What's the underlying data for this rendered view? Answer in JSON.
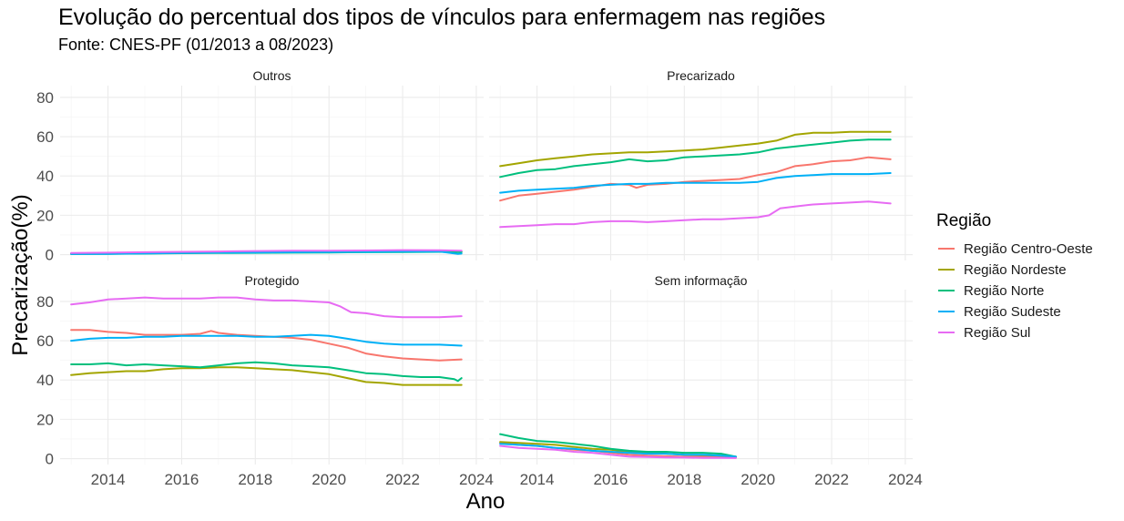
{
  "chart_data": {
    "type": "line",
    "title": "Evolução do percentual dos tipos de vínculos para enfermagem nas regiões",
    "subtitle": "Fonte: CNES-PF (01/2013 a 08/2023)",
    "xlabel": "Ano",
    "ylabel": "Precarização(%)",
    "xlim": [
      2012.7,
      2024.2
    ],
    "ylim": [
      -3,
      86
    ],
    "x_ticks": [
      2014,
      2016,
      2018,
      2020,
      2022,
      2024
    ],
    "y_ticks": [
      0,
      20,
      40,
      60,
      80
    ],
    "grid": true,
    "legend": {
      "title": "Região",
      "position": "right",
      "entries": [
        "Região Centro-Oeste",
        "Região Nordeste",
        "Região Norte",
        "Região Sudeste",
        "Região Sul"
      ]
    },
    "colors": {
      "Região Centro-Oeste": "#F8766D",
      "Região Nordeste": "#A3A500",
      "Região Norte": "#00BF7D",
      "Região Sudeste": "#00B0F6",
      "Região Sul": "#E76BF3"
    },
    "panels": [
      {
        "name": "Outros",
        "series": [
          {
            "name": "Região Centro-Oeste",
            "x": [
              2013,
              2014,
              2015,
              2016,
              2017,
              2018,
              2019,
              2020,
              2021,
              2022,
              2023,
              2023.6
            ],
            "values": [
              0.5,
              0.6,
              0.8,
              1.0,
              1.2,
              1.3,
              1.4,
              1.5,
              1.6,
              1.7,
              1.8,
              1.7
            ]
          },
          {
            "name": "Região Nordeste",
            "x": [
              2013,
              2014,
              2015,
              2016,
              2017,
              2018,
              2019,
              2020,
              2021,
              2022,
              2023,
              2023.6
            ],
            "values": [
              0.4,
              0.5,
              0.7,
              0.9,
              1.0,
              1.1,
              1.2,
              1.3,
              1.4,
              1.5,
              1.6,
              1.5
            ]
          },
          {
            "name": "Região Norte",
            "x": [
              2013,
              2014,
              2015,
              2016,
              2017,
              2018,
              2019,
              2020,
              2021,
              2022,
              2023,
              2023.6
            ],
            "values": [
              0.3,
              0.4,
              0.5,
              0.7,
              0.8,
              0.9,
              1.0,
              1.1,
              1.2,
              1.3,
              1.4,
              1.3
            ]
          },
          {
            "name": "Região Sudeste",
            "x": [
              2013,
              2014,
              2015,
              2016,
              2017,
              2018,
              2019,
              2020,
              2021,
              2022,
              2023,
              2023.5,
              2023.6
            ],
            "values": [
              0.3,
              0.4,
              0.6,
              0.8,
              1.0,
              1.1,
              1.2,
              1.3,
              1.4,
              1.5,
              1.6,
              0.4,
              0.5
            ]
          },
          {
            "name": "Região Sul",
            "x": [
              2013,
              2014,
              2015,
              2016,
              2017,
              2018,
              2019,
              2020,
              2021,
              2022,
              2023,
              2023.6
            ],
            "values": [
              0.8,
              1.0,
              1.2,
              1.4,
              1.6,
              1.8,
              2.0,
              2.0,
              2.1,
              2.3,
              2.2,
              2.0
            ]
          }
        ]
      },
      {
        "name": "Precarizado",
        "series": [
          {
            "name": "Região Centro-Oeste",
            "x": [
              2013,
              2013.5,
              2014,
              2014.5,
              2015,
              2015.5,
              2016,
              2016.5,
              2016.7,
              2017,
              2017.5,
              2018,
              2018.5,
              2019,
              2019.5,
              2020,
              2020.5,
              2021,
              2021.5,
              2022,
              2022.5,
              2023,
              2023.6
            ],
            "values": [
              27.5,
              30,
              31,
              32,
              33,
              34.5,
              36,
              35.5,
              34,
              35.5,
              36,
              37,
              37.5,
              38,
              38.5,
              40.5,
              42,
              45,
              46,
              47.5,
              48,
              49.5,
              48.5
            ]
          },
          {
            "name": "Região Nordeste",
            "x": [
              2013,
              2013.5,
              2014,
              2014.5,
              2015,
              2015.5,
              2016,
              2016.5,
              2017,
              2017.5,
              2018,
              2018.5,
              2019,
              2019.5,
              2020,
              2020.5,
              2021,
              2021.5,
              2022,
              2022.5,
              2023,
              2023.6
            ],
            "values": [
              45,
              46.5,
              48,
              49,
              50,
              51,
              51.5,
              52,
              52,
              52.5,
              53,
              53.5,
              54.5,
              55.5,
              56.5,
              58,
              61,
              62,
              62,
              62.5,
              62.5,
              62.5
            ]
          },
          {
            "name": "Região Norte",
            "x": [
              2013,
              2013.5,
              2014,
              2014.5,
              2015,
              2015.5,
              2016,
              2016.5,
              2017,
              2017.5,
              2018,
              2018.5,
              2019,
              2019.5,
              2020,
              2020.5,
              2021,
              2021.5,
              2022,
              2022.5,
              2023,
              2023.6
            ],
            "values": [
              39.5,
              41.5,
              43,
              43.5,
              45,
              46,
              47,
              48.5,
              47.5,
              48,
              49.5,
              50,
              50.5,
              51,
              52,
              54,
              55,
              56,
              57,
              58,
              58.5,
              58.5
            ]
          },
          {
            "name": "Região Sudeste",
            "x": [
              2013,
              2013.5,
              2014,
              2014.5,
              2015,
              2015.5,
              2016,
              2016.5,
              2017,
              2017.5,
              2018,
              2018.5,
              2019,
              2019.5,
              2020,
              2020.5,
              2021,
              2021.5,
              2022,
              2022.5,
              2023,
              2023.6
            ],
            "values": [
              31.5,
              32.5,
              33,
              33.5,
              34,
              35,
              35.5,
              36,
              36,
              36.5,
              36.5,
              36.5,
              36.5,
              36.5,
              37,
              39,
              40,
              40.5,
              41,
              41,
              41,
              41.5
            ]
          },
          {
            "name": "Região Sul",
            "x": [
              2013,
              2013.5,
              2014,
              2014.5,
              2015,
              2015.5,
              2016,
              2016.5,
              2017,
              2017.5,
              2018,
              2018.5,
              2019,
              2019.5,
              2020,
              2020.3,
              2020.6,
              2021,
              2021.5,
              2022,
              2022.5,
              2023,
              2023.6
            ],
            "values": [
              14,
              14.5,
              15,
              15.5,
              15.5,
              16.5,
              17,
              17,
              16.5,
              17,
              17.5,
              18,
              18,
              18.5,
              19,
              20,
              23.5,
              24.5,
              25.5,
              26,
              26.5,
              27,
              26
            ]
          }
        ]
      },
      {
        "name": "Protegido",
        "series": [
          {
            "name": "Região Centro-Oeste",
            "x": [
              2013,
              2013.5,
              2014,
              2014.5,
              2015,
              2015.5,
              2016,
              2016.5,
              2016.8,
              2017,
              2017.5,
              2018,
              2018.5,
              2019,
              2019.5,
              2020,
              2020.5,
              2021,
              2021.5,
              2022,
              2022.5,
              2023,
              2023.6
            ],
            "values": [
              65.5,
              65.5,
              64.5,
              64,
              63,
              63,
              63,
              63.5,
              65,
              64,
              63,
              62.5,
              62,
              61.5,
              60.5,
              58.5,
              56.5,
              53.5,
              52,
              51,
              50.5,
              50,
              50.5
            ]
          },
          {
            "name": "Região Nordeste",
            "x": [
              2013,
              2013.5,
              2014,
              2014.5,
              2015,
              2015.5,
              2016,
              2016.5,
              2017,
              2017.5,
              2018,
              2018.5,
              2019,
              2019.5,
              2020,
              2020.5,
              2021,
              2021.5,
              2022,
              2022.5,
              2023,
              2023.6
            ],
            "values": [
              42.5,
              43.5,
              44,
              44.5,
              44.5,
              45.5,
              46,
              46,
              46.5,
              46.5,
              46,
              45.5,
              45,
              44,
              43,
              41,
              39,
              38.5,
              37.5,
              37.5,
              37.5,
              37.5
            ]
          },
          {
            "name": "Região Norte",
            "x": [
              2013,
              2013.5,
              2014,
              2014.5,
              2015,
              2015.5,
              2016,
              2016.5,
              2017,
              2017.5,
              2018,
              2018.5,
              2019,
              2019.5,
              2020,
              2020.5,
              2021,
              2021.5,
              2022,
              2022.5,
              2023,
              2023.4,
              2023.5,
              2023.6
            ],
            "values": [
              48,
              48,
              48.5,
              47.5,
              48,
              47.5,
              47,
              46.5,
              47.5,
              48.5,
              49,
              48.5,
              47.5,
              47,
              46.5,
              45,
              43.5,
              43,
              42,
              41.5,
              41.5,
              40.5,
              39.5,
              41
            ]
          },
          {
            "name": "Região Sudeste",
            "x": [
              2013,
              2013.5,
              2014,
              2014.5,
              2015,
              2015.5,
              2016,
              2016.5,
              2017,
              2017.5,
              2018,
              2018.5,
              2019,
              2019.5,
              2020,
              2020.5,
              2021,
              2021.5,
              2022,
              2022.5,
              2023,
              2023.6
            ],
            "values": [
              60,
              61,
              61.5,
              61.5,
              62,
              62,
              62.5,
              62.5,
              62.5,
              62.5,
              62,
              62,
              62.5,
              63,
              62.5,
              61,
              59.5,
              58.5,
              58,
              58,
              58,
              57.5
            ]
          },
          {
            "name": "Região Sul",
            "x": [
              2013,
              2013.5,
              2014,
              2014.5,
              2015,
              2015.5,
              2016,
              2016.5,
              2017,
              2017.5,
              2018,
              2018.5,
              2019,
              2019.5,
              2020,
              2020.3,
              2020.6,
              2021,
              2021.5,
              2022,
              2022.5,
              2023,
              2023.6
            ],
            "values": [
              78.5,
              79.5,
              81,
              81.5,
              82,
              81.5,
              81.5,
              81.5,
              82,
              82,
              81,
              80.5,
              80.5,
              80,
              79.5,
              77.5,
              74.5,
              74,
              72.5,
              72,
              72,
              72,
              72.5
            ]
          }
        ]
      },
      {
        "name": "Sem informação",
        "series": [
          {
            "name": "Região Centro-Oeste",
            "x": [
              2013,
              2013.5,
              2014,
              2014.5,
              2015,
              2015.5,
              2016,
              2016.5,
              2017,
              2017.5,
              2018,
              2018.5,
              2019,
              2019.4
            ],
            "values": [
              8,
              7,
              6.5,
              5.5,
              4.5,
              4,
              3,
              2,
              1.5,
              1.2,
              1,
              1,
              0.8,
              0.5
            ]
          },
          {
            "name": "Região Nordeste",
            "x": [
              2013,
              2013.5,
              2014,
              2014.5,
              2015,
              2015.5,
              2016,
              2016.5,
              2017,
              2017.5,
              2018,
              2018.5,
              2019,
              2019.4
            ],
            "values": [
              8.5,
              8,
              7.5,
              7,
              6,
              5,
              4.5,
              3.5,
              3,
              2.5,
              2,
              1.8,
              1.5,
              1
            ]
          },
          {
            "name": "Região Norte",
            "x": [
              2013,
              2013.5,
              2014,
              2014.5,
              2015,
              2015.5,
              2016,
              2016.5,
              2017,
              2017.5,
              2018,
              2018.5,
              2019,
              2019.4
            ],
            "values": [
              12.5,
              10.5,
              9,
              8.5,
              7.5,
              6.5,
              5,
              4,
              3.5,
              3.5,
              3,
              3,
              2.5,
              1
            ]
          },
          {
            "name": "Região Sudeste",
            "x": [
              2013,
              2013.5,
              2014,
              2014.5,
              2015,
              2015.5,
              2016,
              2016.5,
              2017,
              2017.5,
              2018,
              2018.5,
              2019,
              2019.4
            ],
            "values": [
              7.5,
              7,
              6.5,
              5.5,
              5,
              4,
              3.5,
              3,
              2.5,
              2.5,
              2,
              2,
              1.5,
              1
            ]
          },
          {
            "name": "Região Sul",
            "x": [
              2013,
              2013.5,
              2014,
              2014.5,
              2015,
              2015.5,
              2016,
              2016.5,
              2017,
              2017.5,
              2018,
              2018.5,
              2019,
              2019.4
            ],
            "values": [
              6.5,
              5.5,
              5,
              4.5,
              3.5,
              3,
              2,
              1,
              0.8,
              0.6,
              0.5,
              0.4,
              0.4,
              0.3
            ]
          }
        ]
      }
    ]
  }
}
